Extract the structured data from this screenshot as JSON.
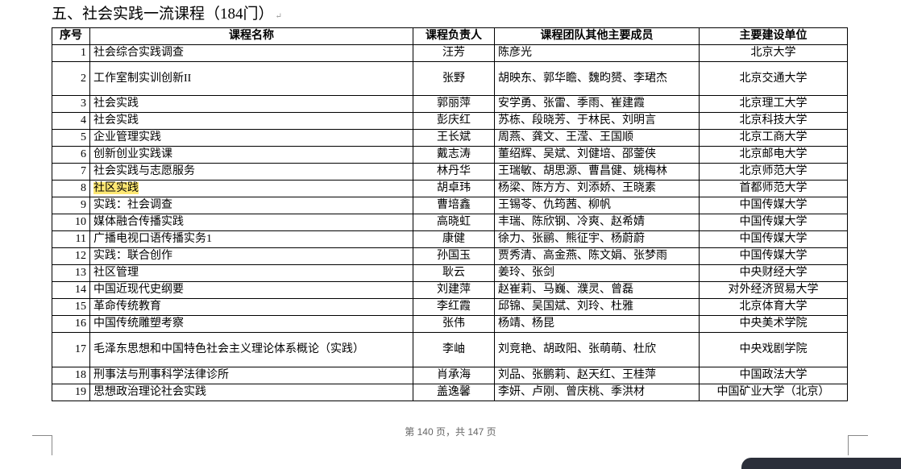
{
  "title": "五、社会实践一流课程（184门）",
  "table": {
    "headers": [
      "序号",
      "课程名称",
      "课程负责人",
      "课程团队其他主要成员",
      "主要建设单位"
    ],
    "rows": [
      [
        "1",
        "社会综合实践调查",
        "汪芳",
        "陈彦光",
        "北京大学"
      ],
      [
        "2",
        "工作室制实训创新II",
        "张野",
        "胡映东、郭华瞻、魏昀赟、李珺杰",
        "北京交通大学"
      ],
      [
        "3",
        "社会实践",
        "郭丽萍",
        "安学勇、张雷、季雨、崔建霞",
        "北京理工大学"
      ],
      [
        "4",
        "社会实践",
        "彭庆红",
        "苏栋、段晓芳、于林民、刘明言",
        "北京科技大学"
      ],
      [
        "5",
        "企业管理实践",
        "王长斌",
        "周燕、龚文、王滢、王国顺",
        "北京工商大学"
      ],
      [
        "6",
        "创新创业实践课",
        "戴志涛",
        "董绍辉、吴斌、刘健培、邵蓥侠",
        "北京邮电大学"
      ],
      [
        "7",
        "社会实践与志愿服务",
        "林丹华",
        "王瑞敏、胡思源、曹昌健、姚梅林",
        "北京师范大学"
      ],
      [
        "8",
        "社区实践",
        "胡卓玮",
        "杨梁、陈方方、刘添娇、王晓素",
        "首都师范大学"
      ],
      [
        "9",
        "实践：社会调查",
        "曹培鑫",
        "王锡苓、仇筠茜、柳帆",
        "中国传媒大学"
      ],
      [
        "10",
        "媒体融合传播实践",
        "高晓虹",
        "丰瑞、陈欣钢、冷爽、赵希婧",
        "中国传媒大学"
      ],
      [
        "11",
        "广播电视口语传播实务1",
        "康健",
        "徐力、张鹂、熊征宇、杨蔚蔚",
        "中国传媒大学"
      ],
      [
        "12",
        "实践：联合创作",
        "孙国玉",
        "贾秀清、高金燕、陈文娟、张梦雨",
        "中国传媒大学"
      ],
      [
        "13",
        "社区管理",
        "耿云",
        "姜玲、张剑",
        "中央财经大学"
      ],
      [
        "14",
        "中国近现代史纲要",
        "刘建萍",
        "赵崔莉、马巍、濮灵、曾磊",
        "对外经济贸易大学"
      ],
      [
        "15",
        "革命传统教育",
        "李红霞",
        "邱锦、吴国斌、刘玲、杜雅",
        "北京体育大学"
      ],
      [
        "16",
        "中国传统雕塑考察",
        "张伟",
        "杨靖、杨昆",
        "中央美术学院"
      ],
      [
        "17",
        "毛泽东思想和中国特色社会主义理论体系概论（实践）",
        "李岫",
        "刘竞艳、胡政阳、张萌萌、杜欣",
        "中央戏剧学院"
      ],
      [
        "18",
        "刑事法与刑事科学法律诊所",
        "肖承海",
        "刘品、张鹏莉、赵天红、王桂萍",
        "中国政法大学"
      ],
      [
        "19",
        "思想政治理论社会实践",
        "盖逸馨",
        "李妍、卢刚、曾庆桃、季洪材",
        "中国矿业大学（北京）"
      ]
    ]
  },
  "highlighted_row": 8,
  "highlight_color": "#ffe873",
  "footer": "第 140 页，共 147 页"
}
